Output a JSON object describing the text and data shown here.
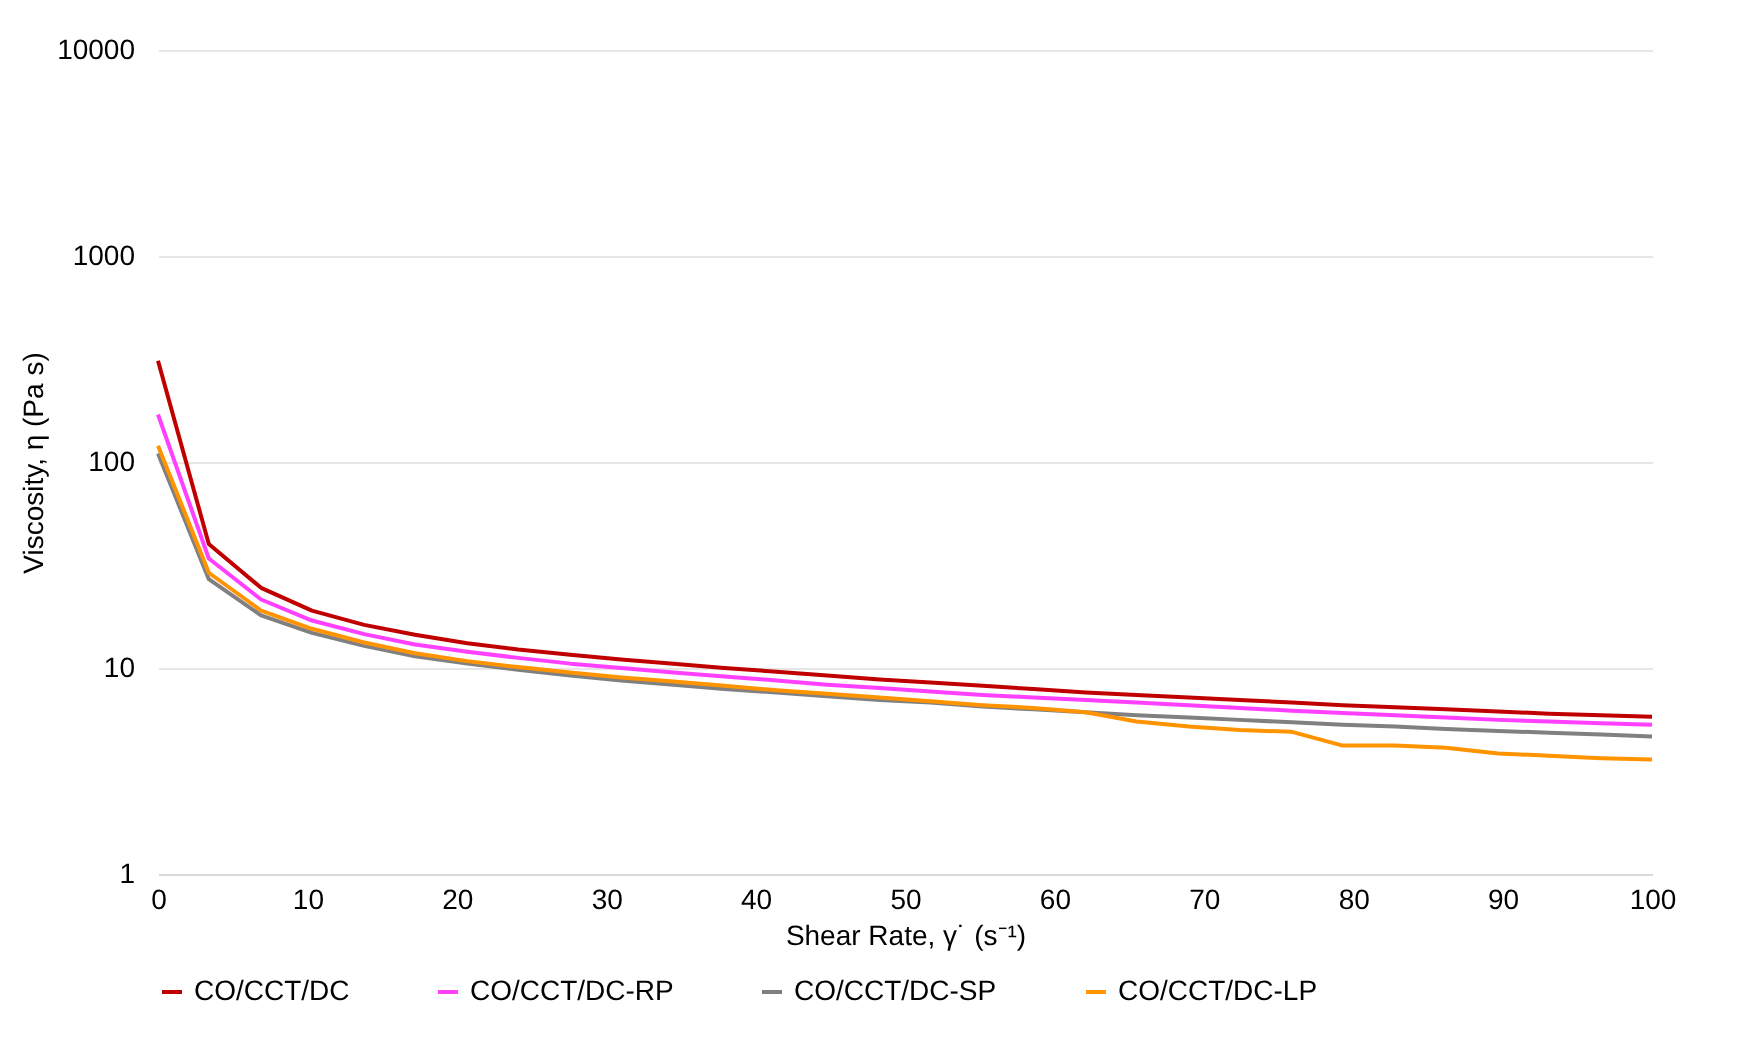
{
  "chart_data": {
    "type": "line",
    "xlabel": "Shear Rate, γ˙  (s⁻¹)",
    "ylabel": "Viscosity, η (Pa s)",
    "log": "y",
    "grid": "y",
    "legend": "bottom",
    "marker": "none",
    "line_style": "solid",
    "xlim": [
      0,
      100
    ],
    "xticks": [
      0,
      10,
      20,
      30,
      40,
      50,
      60,
      70,
      80,
      90,
      100
    ],
    "ylim": [
      1,
      10000
    ],
    "yticks": [
      1,
      10,
      100,
      1000,
      10000
    ],
    "x": [
      0,
      3.4,
      6.9,
      10.3,
      13.8,
      17.2,
      20.7,
      24.1,
      27.6,
      31,
      34.5,
      37.9,
      41.4,
      44.8,
      48.3,
      51.7,
      55.2,
      58.6,
      62.1,
      65.5,
      69,
      72.4,
      75.9,
      79.3,
      82.8,
      86.2,
      89.7,
      93.1,
      96.6,
      100
    ],
    "series": [
      {
        "name": "CO/CCT/DC",
        "color": "#c00000",
        "values": [
          310,
          40,
          24.5,
          19,
          16.2,
          14.5,
          13.2,
          12.3,
          11.6,
          11,
          10.5,
          10,
          9.6,
          9.2,
          8.8,
          8.5,
          8.2,
          7.9,
          7.6,
          7.4,
          7.2,
          7,
          6.8,
          6.6,
          6.45,
          6.3,
          6.15,
          6,
          5.9,
          5.8
        ]
      },
      {
        "name": "CO/CCT/DC-RP",
        "color": "#ff40ff",
        "values": [
          170,
          34,
          21.5,
          17,
          14.6,
          13,
          12,
          11.2,
          10.5,
          10,
          9.5,
          9.1,
          8.7,
          8.3,
          8,
          7.7,
          7.4,
          7.2,
          7,
          6.8,
          6.6,
          6.4,
          6.2,
          6.05,
          5.9,
          5.75,
          5.6,
          5.5,
          5.4,
          5.3
        ]
      },
      {
        "name": "CO/CCT/DC-SP",
        "color": "#808080",
        "values": [
          110,
          27,
          18,
          14.8,
          12.8,
          11.4,
          10.5,
          9.8,
          9.2,
          8.7,
          8.3,
          7.9,
          7.6,
          7.3,
          7,
          6.8,
          6.5,
          6.3,
          6.1,
          5.9,
          5.75,
          5.6,
          5.45,
          5.3,
          5.2,
          5.05,
          4.95,
          4.85,
          4.75,
          4.65
        ]
      },
      {
        "name": "CO/CCT/DC-LP",
        "color": "#ff9300",
        "values": [
          120,
          29,
          19,
          15.5,
          13.3,
          11.8,
          10.8,
          10.1,
          9.5,
          9,
          8.6,
          8.2,
          7.8,
          7.5,
          7.2,
          6.9,
          6.6,
          6.4,
          6.1,
          5.5,
          5.2,
          5,
          4.9,
          4.2,
          4.2,
          4.1,
          3.85,
          3.75,
          3.65,
          3.6
        ]
      }
    ]
  }
}
